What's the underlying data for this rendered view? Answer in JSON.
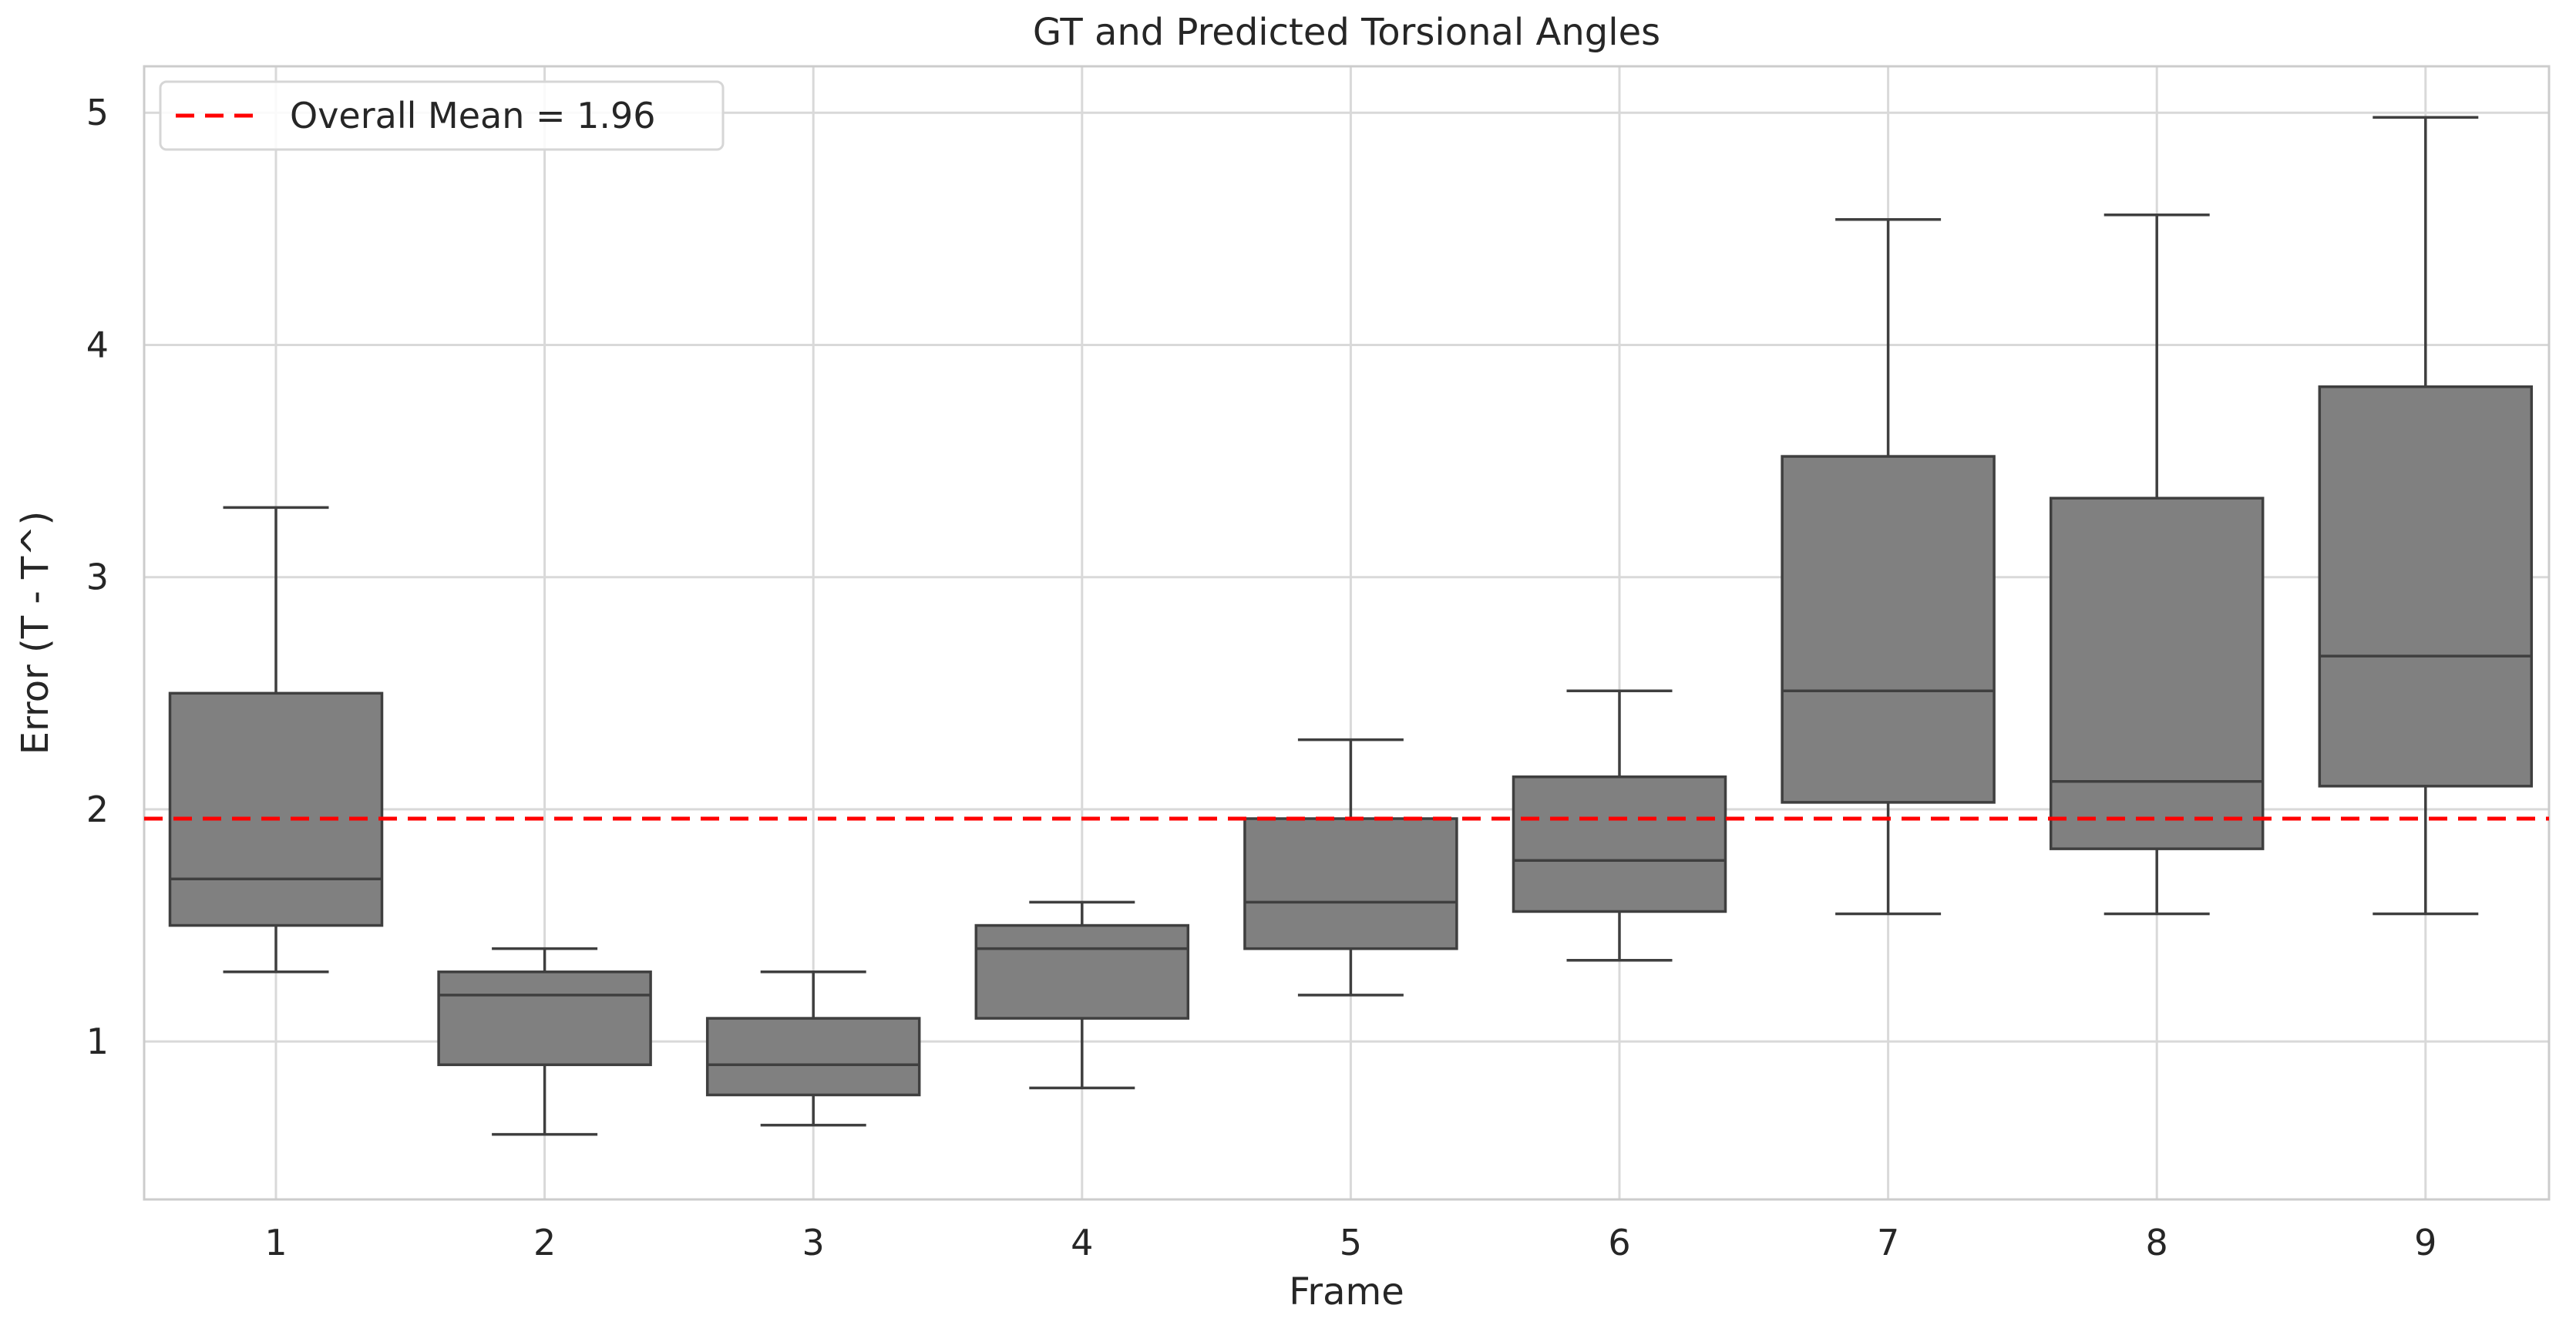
{
  "chart_data": {
    "type": "boxplot",
    "title": "GT and Predicted Torsional Angles",
    "xlabel": "Frame",
    "ylabel": "Error (T - T^)",
    "ylim": [
      0.32,
      5.2
    ],
    "yticks": [
      1,
      2,
      3,
      4,
      5
    ],
    "grid": true,
    "categories": [
      "1",
      "2",
      "3",
      "4",
      "5",
      "6",
      "7",
      "8",
      "9"
    ],
    "boxes": [
      {
        "label": "1",
        "whisker_low": 1.3,
        "q1": 1.5,
        "median": 1.7,
        "q3": 2.5,
        "whisker_high": 3.3
      },
      {
        "label": "2",
        "whisker_low": 0.6,
        "q1": 0.9,
        "median": 1.2,
        "q3": 1.3,
        "whisker_high": 1.4
      },
      {
        "label": "3",
        "whisker_low": 0.64,
        "q1": 0.77,
        "median": 0.9,
        "q3": 1.1,
        "whisker_high": 1.3
      },
      {
        "label": "4",
        "whisker_low": 0.8,
        "q1": 1.1,
        "median": 1.4,
        "q3": 1.5,
        "whisker_high": 1.6
      },
      {
        "label": "5",
        "whisker_low": 1.2,
        "q1": 1.4,
        "median": 1.6,
        "q3": 1.96,
        "whisker_high": 2.3
      },
      {
        "label": "6",
        "whisker_low": 1.35,
        "q1": 1.56,
        "median": 1.78,
        "q3": 2.14,
        "whisker_high": 2.51
      },
      {
        "label": "7",
        "whisker_low": 1.55,
        "q1": 2.03,
        "median": 2.51,
        "q3": 3.52,
        "whisker_high": 4.54
      },
      {
        "label": "8",
        "whisker_low": 1.55,
        "q1": 1.83,
        "median": 2.12,
        "q3": 3.34,
        "whisker_high": 4.56
      },
      {
        "label": "9",
        "whisker_low": 1.55,
        "q1": 2.1,
        "median": 2.66,
        "q3": 3.82,
        "whisker_high": 4.98
      }
    ],
    "reference_line": {
      "value": 1.96,
      "style": "dashed",
      "color": "#ff0000"
    },
    "legend": {
      "position": "top-left",
      "entries": [
        "Overall Mean = 1.96"
      ]
    },
    "box_color": "#808080",
    "edge_color": "#3f3f3f"
  }
}
